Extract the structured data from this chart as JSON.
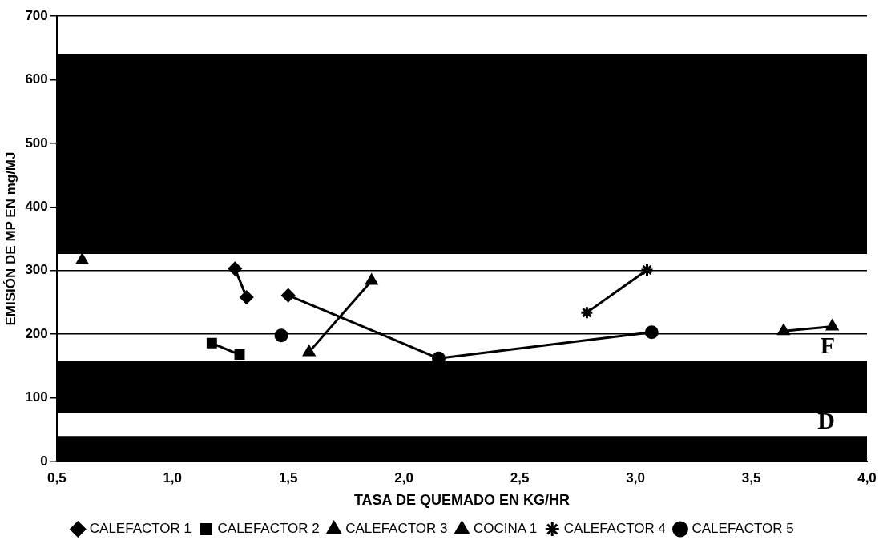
{
  "chart_data": {
    "type": "line",
    "xlabel": "TASA DE QUEMADO EN KG/HR",
    "ylabel": "EMISIÓN DE MP EN mg/MJ",
    "xlim": [
      0.5,
      4.0
    ],
    "xticks": [
      {
        "value": 0.5,
        "label": "0,5"
      },
      {
        "value": 1.0,
        "label": "1,0"
      },
      {
        "value": 1.5,
        "label": "1,5"
      },
      {
        "value": 2.0,
        "label": "2,0"
      },
      {
        "value": 2.5,
        "label": "2,5"
      },
      {
        "value": 3.0,
        "label": "3,0"
      },
      {
        "value": 3.5,
        "label": "3,5"
      },
      {
        "value": 4.0,
        "label": "4,0"
      }
    ],
    "ylim": [
      0,
      700
    ],
    "yticks": [
      0,
      100,
      200,
      300,
      400,
      500,
      600,
      700
    ],
    "grid": "y",
    "legend": "bottom",
    "line_style": "solid",
    "series": [
      {
        "name": "CALEFACTOR 1",
        "color": "#000000",
        "marker": "diamond",
        "x": [
          1.27,
          1.32,
          1.4,
          1.5,
          2.15
        ],
        "values": [
          303,
          258,
          null,
          261,
          162
        ]
      },
      {
        "name": "CALEFACTOR 2",
        "color": "#000000",
        "marker": "square",
        "x": [
          1.17,
          1.29
        ],
        "values": [
          186,
          168
        ]
      },
      {
        "name": "CALEFACTOR 3",
        "color": "#000000",
        "marker": "triangle",
        "x": [
          1.59,
          1.86
        ],
        "values": [
          172,
          284
        ]
      },
      {
        "name": "COCINA 1",
        "color": "#000000",
        "marker": "triangle",
        "x": [
          0.61,
          2.0,
          3.64,
          3.85
        ],
        "values": [
          316,
          null,
          205,
          212
        ]
      },
      {
        "name": "CALEFACTOR 4",
        "color": "#000000",
        "marker": "cross",
        "x": [
          2.79,
          3.05
        ],
        "values": [
          234,
          301
        ]
      },
      {
        "name": "CALEFACTOR 5",
        "color": "#000000",
        "marker": "circle",
        "x": [
          1.47,
          1.8,
          2.15,
          3.07
        ],
        "values": [
          198,
          null,
          162,
          203
        ]
      }
    ],
    "bands": [
      {
        "axis": "y",
        "from": 326,
        "to": 640,
        "color": "#000000"
      },
      {
        "axis": "y",
        "from": 76,
        "to": 158,
        "color": "#000000",
        "label": "F"
      },
      {
        "axis": "y",
        "from": 0,
        "to": 40,
        "color": "#000000",
        "label": "D"
      }
    ]
  }
}
